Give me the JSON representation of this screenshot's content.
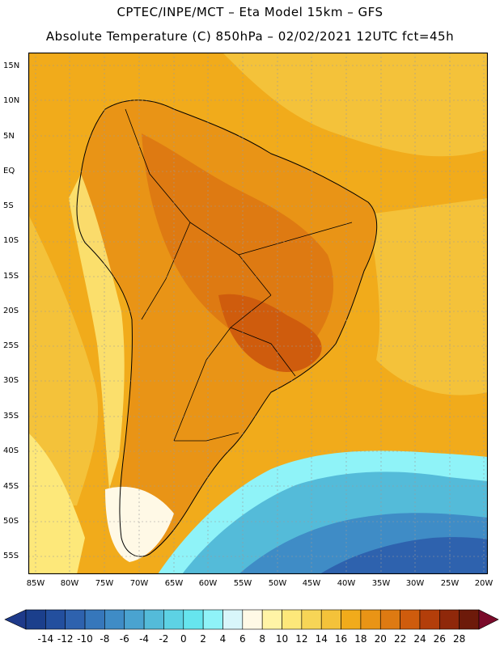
{
  "title": {
    "line1": "CPTEC/INPE/MCT –  Eta Model 15km – GFS",
    "line2": "Absolute Temperature (C) 850hPa – 02/02/2021 12UTC fct=45h"
  },
  "lat_labels": [
    "15N",
    "10N",
    "5N",
    "EQ",
    "5S",
    "10S",
    "15S",
    "20S",
    "25S",
    "30S",
    "35S",
    "40S",
    "45S",
    "50S",
    "55S"
  ],
  "lon_labels": [
    "85W",
    "80W",
    "75W",
    "70W",
    "65W",
    "60W",
    "55W",
    "50W",
    "45W",
    "40W",
    "35W",
    "30W",
    "25W",
    "20W"
  ],
  "colorbar": {
    "labels": [
      "-14",
      "-12",
      "-10",
      "-8",
      "-6",
      "-4",
      "-2",
      "0",
      "2",
      "4",
      "6",
      "8",
      "10",
      "12",
      "14",
      "16",
      "18",
      "20",
      "22",
      "24",
      "26",
      "28"
    ],
    "colors": [
      "#1b3f8c",
      "#234f9e",
      "#2e62ae",
      "#3677bb",
      "#3f8cc6",
      "#4aa3d0",
      "#54bbd9",
      "#5dd2e4",
      "#66e5ee",
      "#8ff3f8",
      "#d8f6fa",
      "#fff9e6",
      "#fff4a6",
      "#fde87a",
      "#f7d556",
      "#f4c23a",
      "#f1ab1b",
      "#e99416",
      "#de7a12",
      "#cf5c0d",
      "#b33e0a",
      "#8f280a",
      "#6d1a0a"
    ],
    "end_left": "#1e3a8a",
    "end_right": "#7a0a2a"
  },
  "colors": {
    "ocean_base": "#f1ab1b",
    "ocean_warm_north": "#f4c23a",
    "land_warm": "#e99416",
    "land_hot": "#de7a12",
    "land_hottest": "#cf5c0d",
    "andes_cool": "#fde87a",
    "patagonia_cold": "#fff9e6",
    "southern_cold_1": "#8ff3f8",
    "southern_cold_2": "#54bbd9",
    "southern_cold_3": "#3f8cc6",
    "southern_cold_4": "#2e62ae",
    "border": "#000000",
    "gridline": "#9a9a9a"
  }
}
